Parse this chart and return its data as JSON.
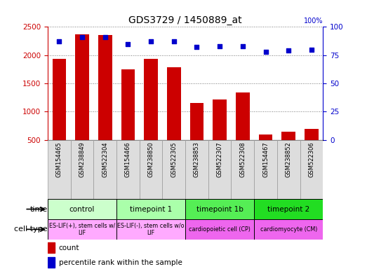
{
  "title": "GDS3729 / 1450889_at",
  "samples": [
    "GSM154465",
    "GSM238849",
    "GSM522304",
    "GSM154466",
    "GSM238850",
    "GSM522305",
    "GSM238853",
    "GSM522307",
    "GSM522308",
    "GSM154467",
    "GSM238852",
    "GSM522306"
  ],
  "counts": [
    1930,
    2370,
    2360,
    1750,
    1930,
    1780,
    1150,
    1220,
    1340,
    590,
    650,
    700
  ],
  "percentile_ranks": [
    87,
    91,
    91,
    85,
    87,
    87,
    82,
    83,
    83,
    78,
    79,
    80
  ],
  "bar_color": "#cc0000",
  "dot_color": "#0000cc",
  "ylim_left": [
    500,
    2500
  ],
  "ylim_right": [
    0,
    100
  ],
  "yticks_left": [
    500,
    1000,
    1500,
    2000,
    2500
  ],
  "yticks_right": [
    0,
    25,
    50,
    75,
    100
  ],
  "time_groups": [
    {
      "label": "control",
      "start": 0,
      "end": 3,
      "color": "#ccffcc"
    },
    {
      "label": "timepoint 1",
      "start": 3,
      "end": 6,
      "color": "#aaffaa"
    },
    {
      "label": "timepoint 1b",
      "start": 6,
      "end": 9,
      "color": "#55ee55"
    },
    {
      "label": "timepoint 2",
      "start": 9,
      "end": 12,
      "color": "#22dd22"
    }
  ],
  "cell_type_groups": [
    {
      "label": "ES-LIF(+), stem cells w/\nLIF",
      "start": 0,
      "end": 3,
      "color": "#ffaaff"
    },
    {
      "label": "ES-LIF(-), stem cells w/o\nLIF",
      "start": 3,
      "end": 6,
      "color": "#ffaaff"
    },
    {
      "label": "cardiopoietic cell (CP)",
      "start": 6,
      "end": 9,
      "color": "#ee66ee"
    },
    {
      "label": "cardiomyocyte (CM)",
      "start": 9,
      "end": 12,
      "color": "#ee66ee"
    }
  ],
  "background_color": "#ffffff",
  "grid_color": "#777777"
}
